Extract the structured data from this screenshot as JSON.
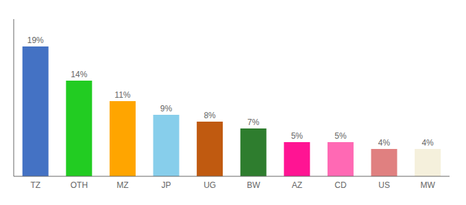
{
  "chart_data": {
    "type": "bar",
    "categories": [
      "TZ",
      "OTH",
      "MZ",
      "JP",
      "UG",
      "BW",
      "AZ",
      "CD",
      "US",
      "MW"
    ],
    "values": [
      19,
      14,
      11,
      9,
      8,
      7,
      5,
      5,
      4,
      4
    ],
    "value_labels": [
      "19%",
      "14%",
      "11%",
      "9%",
      "8%",
      "7%",
      "5%",
      "5%",
      "4%",
      "4%"
    ],
    "colors": [
      "#4472C4",
      "#22CC22",
      "#FFA500",
      "#87CEEB",
      "#C05A10",
      "#2E7D2E",
      "#FF1493",
      "#FF69B4",
      "#E08080",
      "#F5F0DC"
    ],
    "ylim": [
      0,
      23
    ],
    "data_labels": true,
    "tick_labels": "x"
  }
}
